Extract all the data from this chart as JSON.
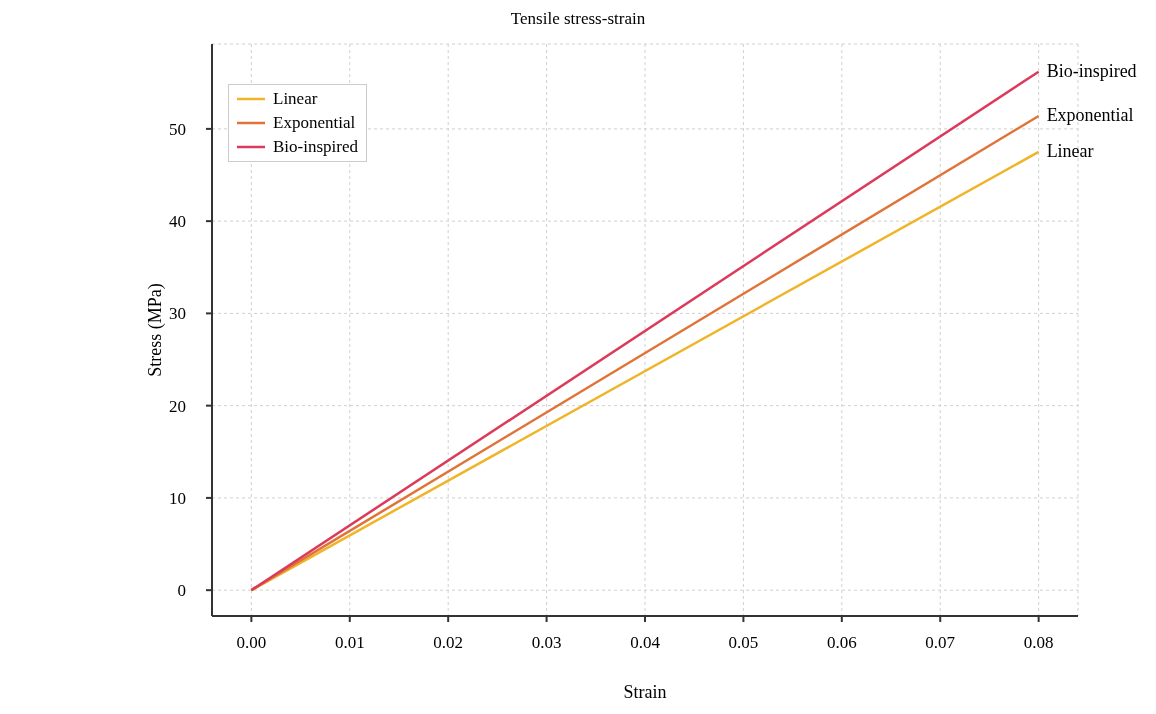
{
  "chart_data": {
    "type": "line",
    "title": "Tensile stress-strain",
    "xlabel": "Strain",
    "ylabel": "Stress (MPa)",
    "x": [
      0,
      0.08
    ],
    "series": [
      {
        "name": "Linear",
        "color": "#f0b429",
        "values": [
          0,
          47.5
        ]
      },
      {
        "name": "Exponential",
        "color": "#e07338",
        "values": [
          0,
          51.4
        ]
      },
      {
        "name": "Bio-inspired",
        "color": "#dc3a5a",
        "values": [
          0,
          56.2
        ]
      }
    ],
    "xlim": [
      -0.004,
      0.084
    ],
    "xticks": [
      {
        "value": 0,
        "label": "0.00"
      },
      {
        "value": 0.01,
        "label": "0.01"
      },
      {
        "value": 0.02,
        "label": "0.02"
      },
      {
        "value": 0.03,
        "label": "0.03"
      },
      {
        "value": 0.04,
        "label": "0.04"
      },
      {
        "value": 0.05,
        "label": "0.05"
      },
      {
        "value": 0.06,
        "label": "0.06"
      },
      {
        "value": 0.07,
        "label": "0.07"
      },
      {
        "value": 0.08,
        "label": "0.08"
      }
    ],
    "ylim": [
      -2.8,
      59.2
    ],
    "yticks": [
      0,
      10,
      20,
      30,
      40,
      50
    ],
    "grid": true,
    "legend": "top left",
    "marker": "none",
    "line_style": "solid"
  }
}
